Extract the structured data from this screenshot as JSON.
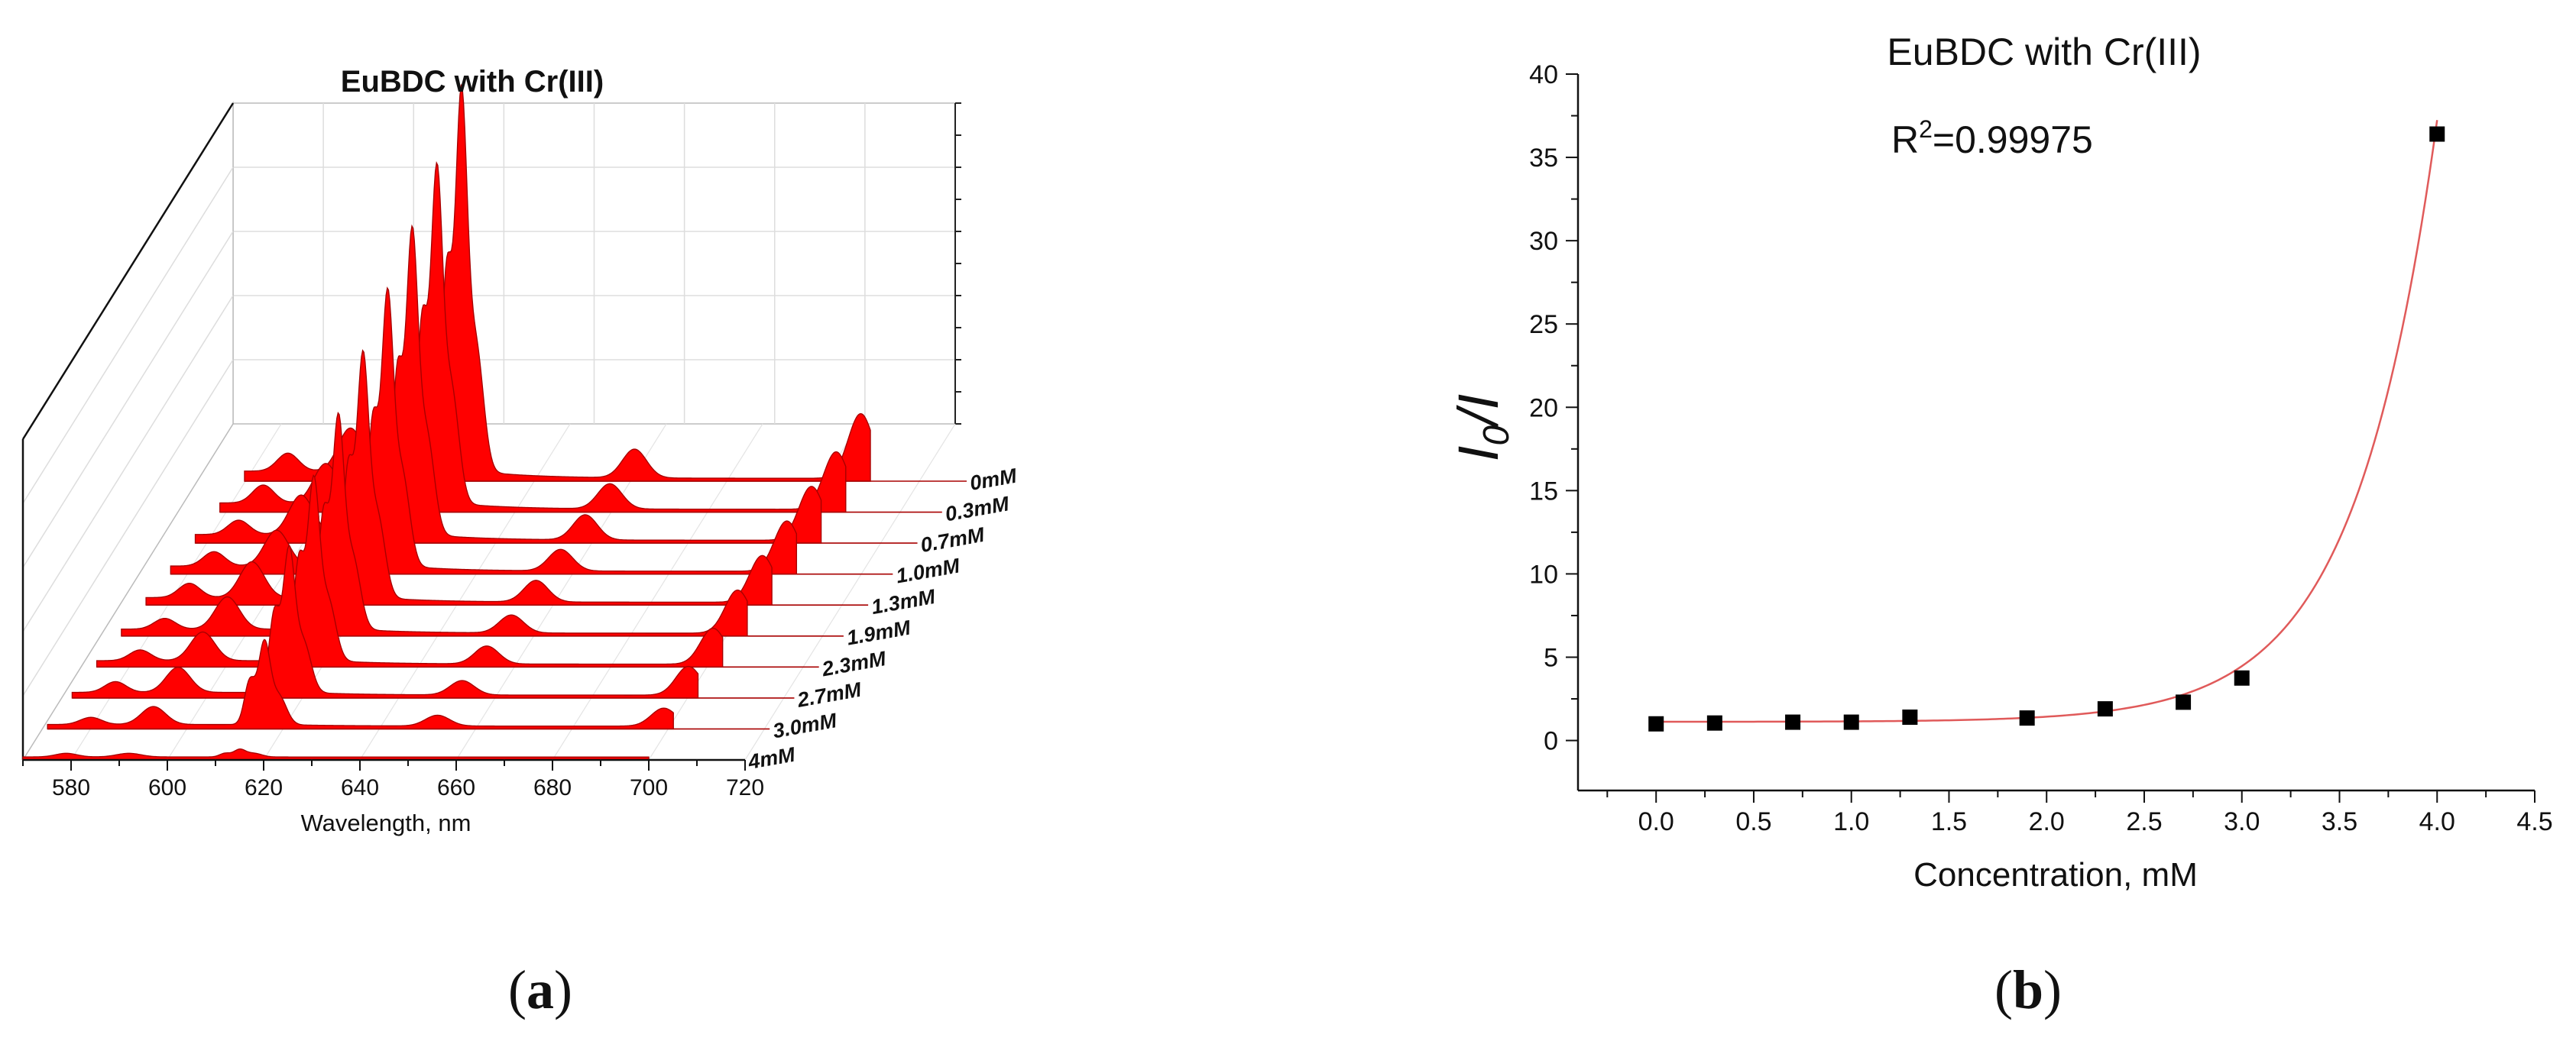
{
  "figure": {
    "panels": [
      {
        "label_open": "(",
        "label_letter": "a",
        "label_close": ")"
      },
      {
        "label_open": "(",
        "label_letter": "b",
        "label_close": ")"
      }
    ]
  },
  "chart_data": [
    {
      "type": "area",
      "title": "EuBDC with Cr(III)",
      "xlabel": "Wavelength, nm",
      "ylabel": "",
      "xlim": [
        570,
        720
      ],
      "x_ticks": [
        "580",
        "600",
        "620",
        "640",
        "660",
        "680",
        "700",
        "720"
      ],
      "fill_color": "#ff0000",
      "series": [
        {
          "name": "0mM",
          "peaks": [
            [
              579,
              0.05
            ],
            [
              592,
              0.12
            ],
            [
              612,
              0.55
            ],
            [
              615,
              1.0
            ],
            [
              618,
              0.35
            ],
            [
              651,
              0.08
            ],
            [
              698,
              0.18
            ]
          ]
        },
        {
          "name": "0.3mM",
          "peaks": [
            [
              579,
              0.05
            ],
            [
              592,
              0.11
            ],
            [
              612,
              0.5
            ],
            [
              615,
              0.88
            ],
            [
              618,
              0.32
            ],
            [
              651,
              0.07
            ],
            [
              698,
              0.16
            ]
          ]
        },
        {
          "name": "0.7mM",
          "peaks": [
            [
              579,
              0.04
            ],
            [
              592,
              0.11
            ],
            [
              612,
              0.45
            ],
            [
              615,
              0.8
            ],
            [
              618,
              0.28
            ],
            [
              651,
              0.07
            ],
            [
              698,
              0.15
            ]
          ]
        },
        {
          "name": "1.0mM",
          "peaks": [
            [
              579,
              0.04
            ],
            [
              592,
              0.1
            ],
            [
              612,
              0.4
            ],
            [
              615,
              0.72
            ],
            [
              618,
              0.26
            ],
            [
              651,
              0.06
            ],
            [
              698,
              0.14
            ]
          ]
        },
        {
          "name": "1.3mM",
          "peaks": [
            [
              579,
              0.04
            ],
            [
              592,
              0.1
            ],
            [
              612,
              0.36
            ],
            [
              615,
              0.64
            ],
            [
              618,
              0.23
            ],
            [
              651,
              0.06
            ],
            [
              698,
              0.13
            ]
          ]
        },
        {
          "name": "1.9mM",
          "peaks": [
            [
              579,
              0.03
            ],
            [
              592,
              0.09
            ],
            [
              612,
              0.32
            ],
            [
              615,
              0.56
            ],
            [
              618,
              0.2
            ],
            [
              651,
              0.05
            ],
            [
              698,
              0.12
            ]
          ]
        },
        {
          "name": "2.3mM",
          "peaks": [
            [
              579,
              0.03
            ],
            [
              592,
              0.08
            ],
            [
              612,
              0.28
            ],
            [
              615,
              0.48
            ],
            [
              618,
              0.17
            ],
            [
              651,
              0.05
            ],
            [
              698,
              0.1
            ]
          ]
        },
        {
          "name": "2.7mM",
          "peaks": [
            [
              579,
              0.03
            ],
            [
              592,
              0.07
            ],
            [
              612,
              0.22
            ],
            [
              615,
              0.38
            ],
            [
              618,
              0.14
            ],
            [
              651,
              0.04
            ],
            [
              698,
              0.08
            ]
          ]
        },
        {
          "name": "3.0mM",
          "peaks": [
            [
              579,
              0.02
            ],
            [
              592,
              0.05
            ],
            [
              612,
              0.12
            ],
            [
              615,
              0.22
            ],
            [
              618,
              0.08
            ],
            [
              651,
              0.03
            ],
            [
              698,
              0.05
            ]
          ]
        },
        {
          "name": "4mM",
          "peaks": [
            [
              579,
              0.01
            ],
            [
              592,
              0.01
            ],
            [
              612,
              0.01
            ],
            [
              615,
              0.02
            ],
            [
              618,
              0.01
            ],
            [
              651,
              0.0
            ],
            [
              698,
              0.0
            ]
          ]
        }
      ]
    },
    {
      "type": "scatter",
      "title": "EuBDC with Cr(III)",
      "annotation_base": "R",
      "annotation_sup": "2",
      "annotation_rest": "=0.99975",
      "xlabel": "Concentration, mM",
      "ylabel_main": "I",
      "ylabel_sub": "0",
      "ylabel_rest": "/I",
      "xlim": [
        -0.4,
        4.5
      ],
      "ylim": [
        -3,
        40
      ],
      "x_ticks": [
        "0.0",
        "0.5",
        "1.0",
        "1.5",
        "2.0",
        "2.5",
        "3.0",
        "3.5",
        "4.0",
        "4.5"
      ],
      "y_ticks": [
        "0",
        "5",
        "10",
        "15",
        "20",
        "25",
        "30",
        "35",
        "40"
      ],
      "points": {
        "x": [
          0.0,
          0.3,
          0.7,
          1.0,
          1.3,
          1.9,
          2.3,
          2.7,
          3.0,
          4.0
        ],
        "y": [
          1.0,
          1.05,
          1.1,
          1.1,
          1.4,
          1.35,
          1.9,
          2.3,
          3.75,
          36.4
        ]
      },
      "fit": {
        "type": "exponential",
        "a": 1.12,
        "b": 0.00265,
        "k": 2.38,
        "color": "#e05a5a"
      },
      "marker_color": "#000000"
    }
  ]
}
